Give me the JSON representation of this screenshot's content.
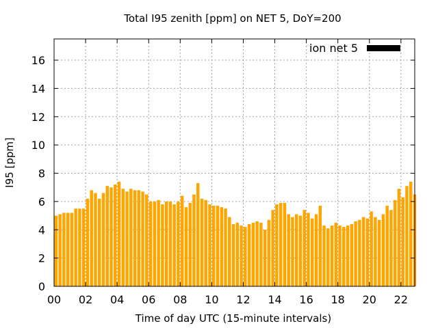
{
  "chart_data": {
    "type": "bar",
    "title": "Total I95 zenith [ppm] on NET 5, DoY=200",
    "xlabel": "Time of day UTC (15-minute intervals)",
    "ylabel": "I95 [ppm]",
    "xlim": [
      0,
      22.875
    ],
    "ylim": [
      0,
      17.5
    ],
    "x_ticks": [
      "00",
      "02",
      "04",
      "06",
      "08",
      "10",
      "12",
      "14",
      "16",
      "18",
      "20",
      "22"
    ],
    "y_ticks": [
      "0",
      "2",
      "4",
      "6",
      "8",
      "10",
      "12",
      "14",
      "16"
    ],
    "grid": true,
    "legend_position": "top-right",
    "bar_color": "#ffa500",
    "series": [
      {
        "name": "ion net 5",
        "legend_color": "#000000",
        "values": [
          5.0,
          5.1,
          5.2,
          5.2,
          5.2,
          5.5,
          5.5,
          5.5,
          6.2,
          6.8,
          6.6,
          6.2,
          6.6,
          7.1,
          7.0,
          7.2,
          7.4,
          6.9,
          6.7,
          6.9,
          6.8,
          6.8,
          6.7,
          6.5,
          6.0,
          6.0,
          6.1,
          5.8,
          6.0,
          6.0,
          5.8,
          6.0,
          6.4,
          5.6,
          5.9,
          6.5,
          7.3,
          6.2,
          6.1,
          5.8,
          5.7,
          5.7,
          5.6,
          5.5,
          4.9,
          4.4,
          4.5,
          4.3,
          4.2,
          4.4,
          4.5,
          4.6,
          4.5,
          4.0,
          4.7,
          5.4,
          5.8,
          5.9,
          5.9,
          5.1,
          4.9,
          5.1,
          5.0,
          5.4,
          5.2,
          4.8,
          5.1,
          5.7,
          4.3,
          4.1,
          4.3,
          4.5,
          4.3,
          4.2,
          4.3,
          4.4,
          4.6,
          4.7,
          4.9,
          4.8,
          5.3,
          4.9,
          4.7,
          5.1,
          5.7,
          5.4,
          6.1,
          6.9,
          6.3,
          7.1,
          7.4,
          6.5
        ]
      }
    ]
  }
}
